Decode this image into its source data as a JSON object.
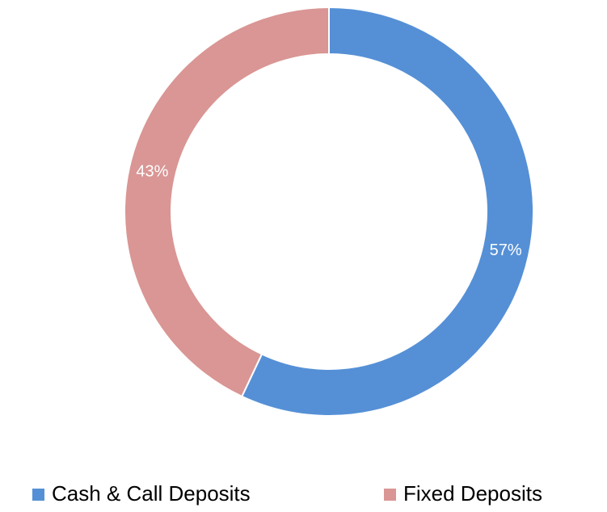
{
  "chart_data": {
    "type": "pie",
    "categories": [
      "Cash & Call Deposits",
      "Fixed Deposits"
    ],
    "values": [
      57,
      43
    ],
    "value_labels": [
      "57%",
      "43%"
    ],
    "colors": [
      "#5590d6",
      "#d99694"
    ],
    "legend": "bottom"
  }
}
